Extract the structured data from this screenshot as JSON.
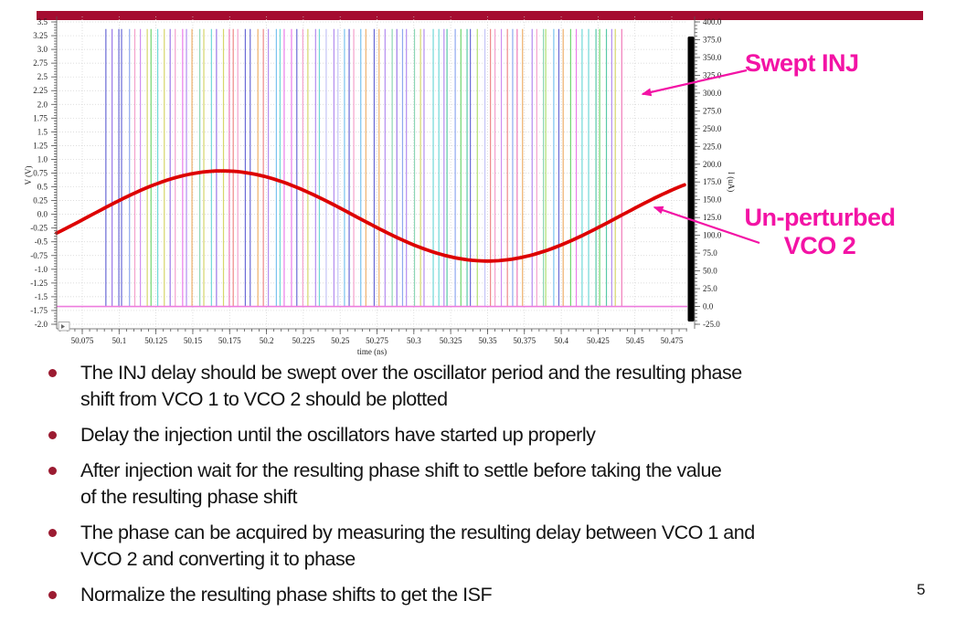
{
  "slide": {
    "page_number": "5",
    "accent_bar_color": "#a50c30",
    "bullet_color": "#9b1b31",
    "bullets": [
      {
        "lines": [
          "The INJ delay should be swept over the oscillator period and the resulting phase",
          "shift from VCO 1 to VCO 2 should be plotted"
        ]
      },
      {
        "lines": [
          "Delay the injection until the oscillators have started up properly"
        ]
      },
      {
        "lines": [
          "After injection wait for the resulting phase shift to settle before taking the value",
          "of the resulting phase shift"
        ]
      },
      {
        "lines": [
          "The phase can be acquired by measuring the resulting delay between VCO 1 and",
          "VCO 2 and converting it to phase"
        ]
      },
      {
        "lines": [
          "Normalize the resulting phase shifts to get the ISF"
        ]
      }
    ]
  },
  "annotations": {
    "swept_inj": "Swept INJ",
    "unperturbed_line1": "Un-perturbed",
    "unperturbed_line2": "VCO 2",
    "color": "#f313a5"
  },
  "chart_data": {
    "type": "line",
    "title": "",
    "xlabel": "time (ns)",
    "ylabel_left": "V (V)",
    "ylabel_right": "I (uA)",
    "xlim": [
      50.058,
      50.487
    ],
    "ylim_left": [
      -2.0,
      3.5
    ],
    "ylim_right": [
      -25.0,
      400.0
    ],
    "grid": true,
    "x_ticks": [
      "50.075",
      "50.1",
      "50.125",
      "50.15",
      "50.175",
      "50.2",
      "50.225",
      "50.25",
      "50.275",
      "50.3",
      "50.325",
      "50.35",
      "50.375",
      "50.4",
      "50.425",
      "50.45",
      "50.475"
    ],
    "left_y_ticks": [
      "3.5",
      "3.25",
      "3.0",
      "2.75",
      "2.5",
      "2.25",
      "2.0",
      "1.75",
      "1.5",
      "1.25",
      "1.0",
      "0.75",
      "0.5",
      "0.25",
      "0.0",
      "-0.25",
      "-0.5",
      "-0.75",
      "-1.0",
      "-1.25",
      "-1.5",
      "-1.75",
      "-2.0"
    ],
    "right_y_ticks": [
      "400.0",
      "375.0",
      "350.0",
      "325.0",
      "300.0",
      "275.0",
      "250.0",
      "225.0",
      "200.0",
      "175.0",
      "150.0",
      "125.0",
      "100.0",
      "75.0",
      "50.0",
      "25.0",
      "0.0",
      "-25.0"
    ],
    "series": [
      {
        "name": "Un-perturbed VCO 2",
        "kind": "sine",
        "axis": "left",
        "color": "#dd0000",
        "amplitude_V": 0.82,
        "offset_V": -0.03,
        "period_ns": 0.36,
        "peak_time_ns": 50.17
      },
      {
        "name": "Swept INJ pulses",
        "kind": "pulse-train",
        "axis": "right",
        "count": 90,
        "first_ns": 50.091,
        "last_ns": 50.442,
        "high_uA": 390,
        "low_uA": 0,
        "palette": [
          "#ee8888",
          "#eeb06a",
          "#d6d66a",
          "#b0e070",
          "#6fd66f",
          "#58c9a8",
          "#6fd8d8",
          "#79c3ef",
          "#8fa8ef",
          "#6a6ad6",
          "#9a78e8",
          "#b48cf0",
          "#cf8ef0",
          "#ea7cea",
          "#f07ab8",
          "#f4a0cc",
          "#c4c4f6",
          "#8cd6b4"
        ]
      },
      {
        "name": "INJ baseline",
        "kind": "hline",
        "axis": "right",
        "value_uA": 0.0,
        "color": "#ed7cde"
      }
    ]
  }
}
